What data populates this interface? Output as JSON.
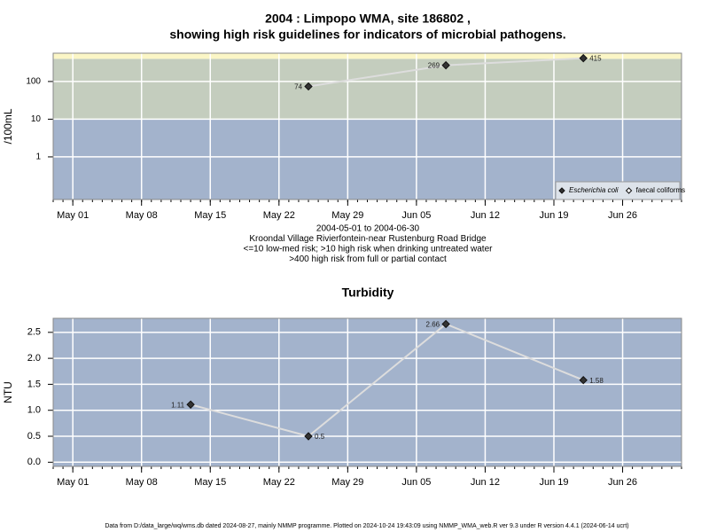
{
  "chart_data": [
    {
      "type": "line",
      "title": [
        "2004 : Limpopo WMA, site 186802 ,",
        "showing high risk guidelines for indicators of microbial pathogens."
      ],
      "y_label": "/100mL",
      "notes": [
        "2004-05-01 to 2004-06-30",
        "Kroondal Village Rivierfontein-near Rustenburg Road Bridge",
        "<=10 low-med risk; >10 high risk when drinking untreated water",
        ">400 high risk from full or partial contact"
      ],
      "x": [
        "2004-05-25",
        "2004-06-08",
        "2004-06-22"
      ],
      "series": [
        {
          "name": "Escherichia coli",
          "color": "#333333",
          "values": [
            74,
            269,
            415
          ]
        },
        {
          "name": "faecal coliforms",
          "color": "#ffffff",
          "values": [
            null,
            null,
            null
          ]
        }
      ],
      "log_scale": true,
      "ylim": [
        0.074,
        563
      ],
      "yticks": [
        1,
        10,
        100
      ],
      "guidelines": [
        10,
        400
      ],
      "band_colors": [
        "#a3b3cc",
        "#c4cdbe",
        "#fbf6c6"
      ],
      "xlim": [
        "2004-04-29",
        "2004-07-02"
      ],
      "xticks": [
        {
          "value": "2004-05-01",
          "label": "May 01"
        },
        {
          "value": "2004-05-08",
          "label": "May 08"
        },
        {
          "value": "2004-05-15",
          "label": "May 15"
        },
        {
          "value": "2004-05-22",
          "label": "May 22"
        },
        {
          "value": "2004-05-29",
          "label": "May 29"
        },
        {
          "value": "2004-06-05",
          "label": "Jun 05"
        },
        {
          "value": "2004-06-12",
          "label": "Jun 12"
        },
        {
          "value": "2004-06-19",
          "label": "Jun 19"
        },
        {
          "value": "2004-06-26",
          "label": "Jun 26"
        }
      ],
      "grid": true,
      "legend": "bottom-right",
      "line_color": "#dddddd"
    },
    {
      "type": "line",
      "title": [
        "Turbidity"
      ],
      "y_label": "NTU",
      "x": [
        "2004-05-13",
        "2004-05-25",
        "2004-06-08",
        "2004-06-22"
      ],
      "series": [
        {
          "name": "Turbidity",
          "color": "#333333",
          "values": [
            1.11,
            0.5,
            2.66,
            1.58
          ]
        }
      ],
      "log_scale": false,
      "ylim": [
        -0.08,
        2.77
      ],
      "yticks": [
        {
          "value": 0,
          "label": "0.0"
        },
        0.5,
        {
          "value": 1,
          "label": "1.0"
        },
        1.5,
        {
          "value": 2,
          "label": "2.0"
        },
        2.5
      ],
      "background": "#a3b3cc",
      "xlim": [
        "2004-04-29",
        "2004-07-02"
      ],
      "xticks": [
        {
          "value": "2004-05-01",
          "label": "May 01"
        },
        {
          "value": "2004-05-08",
          "label": "May 08"
        },
        {
          "value": "2004-05-15",
          "label": "May 15"
        },
        {
          "value": "2004-05-22",
          "label": "May 22"
        },
        {
          "value": "2004-05-29",
          "label": "May 29"
        },
        {
          "value": "2004-06-05",
          "label": "Jun 05"
        },
        {
          "value": "2004-06-12",
          "label": "Jun 12"
        },
        {
          "value": "2004-06-19",
          "label": "Jun 19"
        },
        {
          "value": "2004-06-26",
          "label": "Jun 26"
        }
      ],
      "grid": true,
      "line_color": "#dddddd"
    }
  ],
  "footer": "Data from D:/data_large/wq/wms.db dated 2024-08-27, mainly NMMP programme. Plotted on 2024-10-24 19:43:09 using NMMP_WMA_web.R ver 9.3 under R version 4.4.1 (2024-06-14 ucrt)"
}
